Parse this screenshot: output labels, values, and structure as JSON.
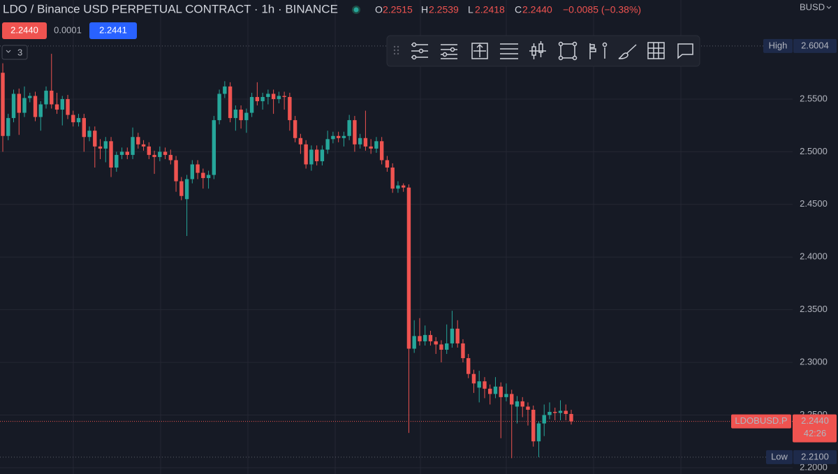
{
  "header": {
    "title": "LDO / Binance USD PERPETUAL CONTRACT · 1h · BINANCE",
    "ohlc": [
      {
        "key": "O",
        "value": "2.2515"
      },
      {
        "key": "H",
        "value": "2.2539"
      },
      {
        "key": "L",
        "value": "2.2418"
      },
      {
        "key": "C",
        "value": "2.2440"
      }
    ],
    "change": "−0.0085 (−0.38%)",
    "currency": "BUSD"
  },
  "quote": {
    "sell": "2.2440",
    "spread": "0.0001",
    "buy": "2.2441"
  },
  "indicator_count": "3",
  "chart_data": {
    "type": "candlestick",
    "up_color": "#26a69a",
    "down_color": "#ef5350",
    "ylim": [
      2.194,
      2.6441
    ],
    "yticks": [
      {
        "value": 2.2,
        "label": "2.2000"
      },
      {
        "value": 2.25,
        "label": "2.2500"
      },
      {
        "value": 2.3,
        "label": "2.3000"
      },
      {
        "value": 2.35,
        "label": "2.3500"
      },
      {
        "value": 2.4,
        "label": "2.4000"
      },
      {
        "value": 2.45,
        "label": "2.4500"
      },
      {
        "value": 2.5,
        "label": "2.5000"
      },
      {
        "value": 2.55,
        "label": "2.5500"
      }
    ],
    "grid": true,
    "high": {
      "name": "High",
      "value": 2.6004,
      "label": "2.6004"
    },
    "low": {
      "name": "Low",
      "value": 2.21,
      "label": "2.2100"
    },
    "last": {
      "name": "LDOBUSD.P",
      "value": 2.244,
      "label": "2.2440",
      "countdown": "42:26"
    },
    "candles": [
      [
        2.575,
        2.584,
        2.5,
        2.515
      ],
      [
        2.515,
        2.536,
        2.511,
        2.532
      ],
      [
        2.532,
        2.559,
        2.528,
        2.555
      ],
      [
        2.555,
        2.56,
        2.516,
        2.537
      ],
      [
        2.537,
        2.562,
        2.533,
        2.551
      ],
      [
        2.551,
        2.556,
        2.547,
        2.553
      ],
      [
        2.553,
        2.557,
        2.529,
        2.533
      ],
      [
        2.533,
        2.548,
        2.52,
        2.545
      ],
      [
        2.545,
        2.562,
        2.541,
        2.558
      ],
      [
        2.558,
        2.593,
        2.541,
        2.545
      ],
      [
        2.545,
        2.556,
        2.536,
        2.54
      ],
      [
        2.54,
        2.553,
        2.525,
        2.55
      ],
      [
        2.55,
        2.554,
        2.531,
        2.535
      ],
      [
        2.535,
        2.539,
        2.524,
        2.528
      ],
      [
        2.528,
        2.536,
        2.524,
        2.532
      ],
      [
        2.532,
        2.536,
        2.5,
        2.514
      ],
      [
        2.514,
        2.524,
        2.51,
        2.52
      ],
      [
        2.52,
        2.524,
        2.485,
        2.505
      ],
      [
        2.505,
        2.512,
        2.493,
        2.503
      ],
      [
        2.503,
        2.514,
        2.49,
        2.51
      ],
      [
        2.51,
        2.514,
        2.476,
        2.485
      ],
      [
        2.485,
        2.5,
        2.481,
        2.497
      ],
      [
        2.497,
        2.504,
        2.493,
        2.5
      ],
      [
        2.5,
        2.504,
        2.493,
        2.497
      ],
      [
        2.497,
        2.523,
        2.493,
        2.514
      ],
      [
        2.514,
        2.518,
        2.503,
        2.507
      ],
      [
        2.507,
        2.511,
        2.501,
        2.505
      ],
      [
        2.505,
        2.509,
        2.493,
        2.497
      ],
      [
        2.497,
        2.501,
        2.479,
        2.495
      ],
      [
        2.495,
        2.505,
        2.491,
        2.5
      ],
      [
        2.5,
        2.504,
        2.493,
        2.497
      ],
      [
        2.497,
        2.502,
        2.488,
        2.492
      ],
      [
        2.492,
        2.496,
        2.462,
        2.472
      ],
      [
        2.472,
        2.476,
        2.454,
        2.458
      ],
      [
        2.455,
        2.478,
        2.42,
        2.474
      ],
      [
        2.474,
        2.492,
        2.47,
        2.488
      ],
      [
        2.488,
        2.492,
        2.474,
        2.48
      ],
      [
        2.48,
        2.484,
        2.465,
        2.475
      ],
      [
        2.475,
        2.482,
        2.465,
        2.478
      ],
      [
        2.478,
        2.534,
        2.474,
        2.53
      ],
      [
        2.53,
        2.559,
        2.526,
        2.555
      ],
      [
        2.555,
        2.567,
        2.551,
        2.562
      ],
      [
        2.562,
        2.566,
        2.528,
        2.532
      ],
      [
        2.532,
        2.544,
        2.52,
        2.54
      ],
      [
        2.54,
        2.544,
        2.522,
        2.53
      ],
      [
        2.53,
        2.541,
        2.518,
        2.537
      ],
      [
        2.537,
        2.556,
        2.533,
        2.552
      ],
      [
        2.552,
        2.566,
        2.544,
        2.548
      ],
      [
        2.548,
        2.556,
        2.54,
        2.552
      ],
      [
        2.552,
        2.559,
        2.545,
        2.555
      ],
      [
        2.555,
        2.559,
        2.536,
        2.55
      ],
      [
        2.55,
        2.557,
        2.546,
        2.553
      ],
      [
        2.553,
        2.557,
        2.54,
        2.552
      ],
      [
        2.552,
        2.556,
        2.52,
        2.53
      ],
      [
        2.53,
        2.534,
        2.509,
        2.513
      ],
      [
        2.513,
        2.517,
        2.498,
        2.507
      ],
      [
        2.507,
        2.511,
        2.484,
        2.488
      ],
      [
        2.488,
        2.506,
        2.482,
        2.502
      ],
      [
        2.502,
        2.506,
        2.487,
        2.491
      ],
      [
        2.491,
        2.506,
        2.487,
        2.502
      ],
      [
        2.502,
        2.52,
        2.498,
        2.512
      ],
      [
        2.512,
        2.519,
        2.508,
        2.515
      ],
      [
        2.515,
        2.519,
        2.509,
        2.513
      ],
      [
        2.513,
        2.519,
        2.505,
        2.515
      ],
      [
        2.515,
        2.535,
        2.511,
        2.53
      ],
      [
        2.53,
        2.534,
        2.5,
        2.507
      ],
      [
        2.507,
        2.517,
        2.503,
        2.513
      ],
      [
        2.513,
        2.539,
        2.501,
        2.505
      ],
      [
        2.505,
        2.512,
        2.498,
        2.503
      ],
      [
        2.503,
        2.514,
        2.499,
        2.51
      ],
      [
        2.51,
        2.514,
        2.488,
        2.492
      ],
      [
        2.492,
        2.496,
        2.481,
        2.485
      ],
      [
        2.485,
        2.489,
        2.461,
        2.465
      ],
      [
        2.465,
        2.472,
        2.461,
        2.468
      ],
      [
        2.468,
        2.47,
        2.462,
        2.466
      ],
      [
        2.466,
        2.469,
        2.233,
        2.313
      ],
      [
        2.313,
        2.34,
        2.309,
        2.325
      ],
      [
        2.325,
        2.342,
        2.316,
        2.32
      ],
      [
        2.32,
        2.335,
        2.316,
        2.326
      ],
      [
        2.326,
        2.33,
        2.316,
        2.32
      ],
      [
        2.32,
        2.324,
        2.308,
        2.317
      ],
      [
        2.317,
        2.321,
        2.3,
        2.312
      ],
      [
        2.312,
        2.336,
        2.308,
        2.318
      ],
      [
        2.318,
        2.349,
        2.314,
        2.332
      ],
      [
        2.332,
        2.34,
        2.314,
        2.318
      ],
      [
        2.318,
        2.322,
        2.3,
        2.304
      ],
      [
        2.304,
        2.308,
        2.285,
        2.289
      ],
      [
        2.289,
        2.293,
        2.271,
        2.28
      ],
      [
        2.276,
        2.292,
        2.262,
        2.282
      ],
      [
        2.282,
        2.286,
        2.266,
        2.275
      ],
      [
        2.275,
        2.279,
        2.26,
        2.27
      ],
      [
        2.27,
        2.286,
        2.266,
        2.277
      ],
      [
        2.277,
        2.281,
        2.228,
        2.267
      ],
      [
        2.267,
        2.28,
        2.263,
        2.27
      ],
      [
        2.27,
        2.274,
        2.209,
        2.26
      ],
      [
        2.258,
        2.268,
        2.242,
        2.263
      ],
      [
        2.263,
        2.267,
        2.248,
        2.258
      ],
      [
        2.258,
        2.262,
        2.24,
        2.255
      ],
      [
        2.255,
        2.259,
        2.22,
        2.225
      ],
      [
        2.225,
        2.244,
        2.21,
        2.242
      ],
      [
        2.242,
        2.26,
        2.23,
        2.25
      ],
      [
        2.25,
        2.262,
        2.246,
        2.253
      ],
      [
        2.253,
        2.257,
        2.245,
        2.252
      ],
      [
        2.252,
        2.264,
        2.245,
        2.254
      ],
      [
        2.254,
        2.26,
        2.245,
        2.251
      ],
      [
        2.251,
        2.255,
        2.241,
        2.244
      ]
    ]
  }
}
